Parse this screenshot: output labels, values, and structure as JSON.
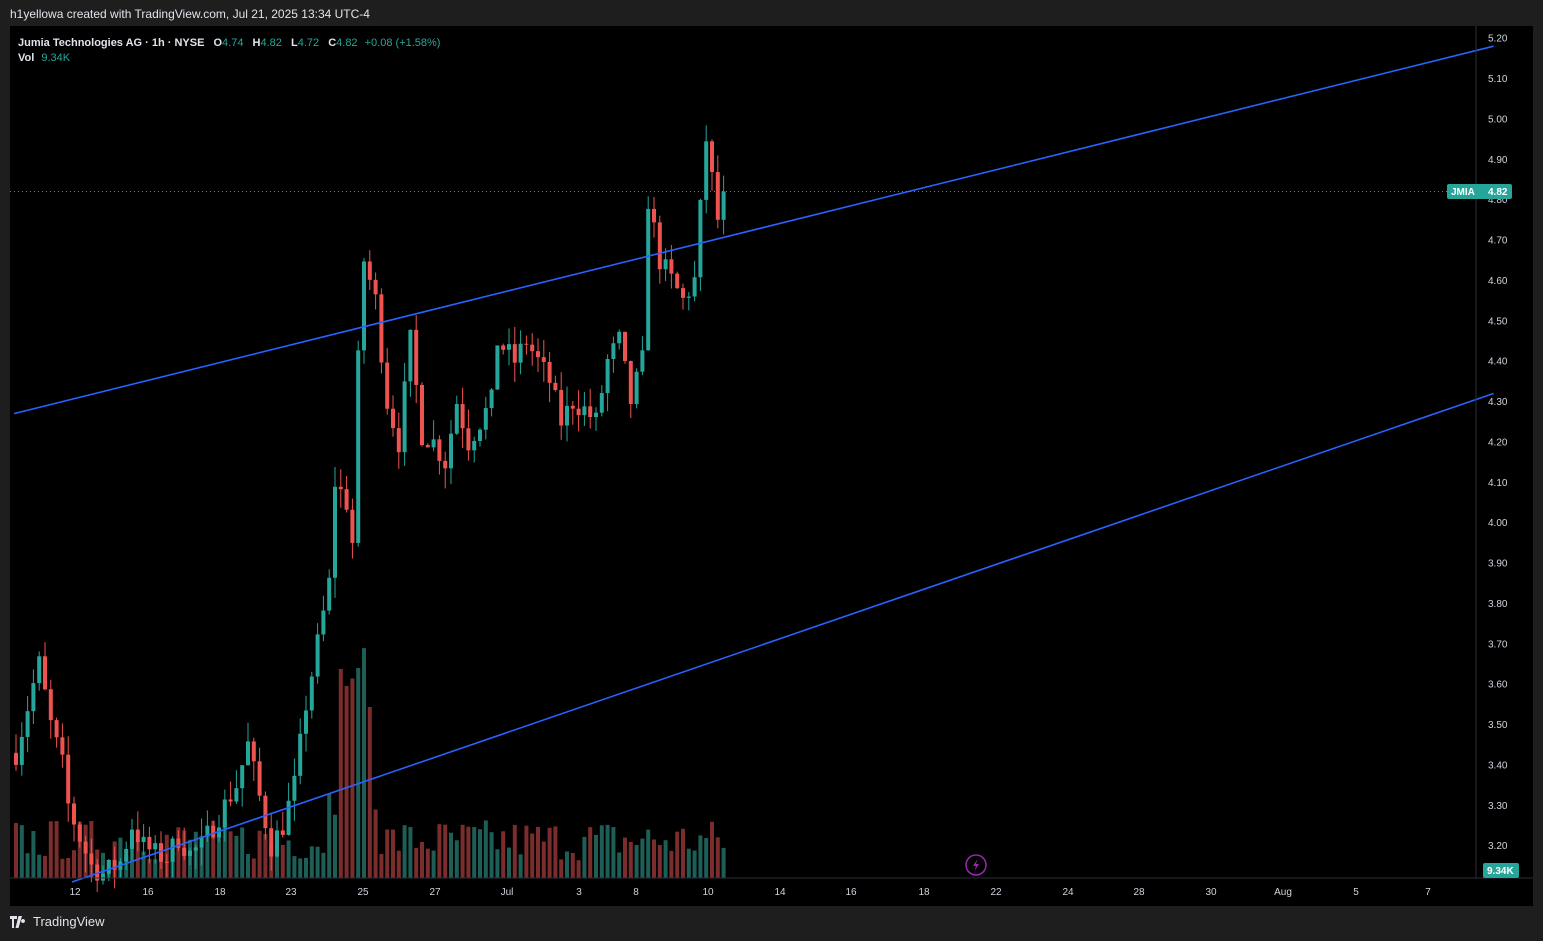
{
  "caption": "h1yellowa created with TradingView.com, Jul 21, 2025 13:34 UTC-4",
  "footer": {
    "brand": "TradingView"
  },
  "legend": {
    "symbol_line": "Jumia Technologies AG · 1h · NYSE",
    "o_label": "O",
    "o_value": "4.74",
    "h_label": "H",
    "h_value": "4.82",
    "l_label": "L",
    "l_value": "4.72",
    "c_label": "C",
    "c_value": "4.82",
    "change": "+0.08 (+1.58%)",
    "vol_label": "Vol",
    "vol_value": "9.34K"
  },
  "colors": {
    "up": "#26a69a",
    "down": "#ef5350",
    "up_vol": "#1d5e57",
    "down_vol": "#7a2d2c",
    "trendline": "#2962ff",
    "badge": "#26a69a",
    "background": "#000000"
  },
  "price_badge": {
    "symbol": "JMIA",
    "value": "4.82"
  },
  "volume_badge": {
    "value": "9.34K"
  },
  "icons": {
    "lightning": "lightning-icon",
    "logo": "tradingview-logo-icon"
  },
  "chart_data": {
    "type": "candlestick",
    "title": "Jumia Technologies AG · 1h · NYSE",
    "ylim": [
      3.12,
      5.23
    ],
    "y_ticks": [
      "5.20",
      "5.10",
      "5.00",
      "4.90",
      "4.80",
      "4.70",
      "4.60",
      "4.50",
      "4.40",
      "4.30",
      "4.20",
      "4.10",
      "4.00",
      "3.90",
      "3.80",
      "3.70",
      "3.60",
      "3.50",
      "3.40",
      "3.30",
      "3.20"
    ],
    "x_ticks": [
      "12",
      "16",
      "18",
      "23",
      "25",
      "27",
      "Jul",
      "3",
      "8",
      "10",
      "14",
      "16",
      "18",
      "22",
      "24",
      "28",
      "30",
      "Aug",
      "5",
      "7"
    ],
    "last_price": 4.82,
    "trendlines": [
      {
        "name": "upper channel",
        "start": [
          0,
          4.27
        ],
        "end": [
          162,
          5.18
        ]
      },
      {
        "name": "lower channel",
        "start": [
          10,
          3.11
        ],
        "end": [
          162,
          4.32
        ]
      }
    ],
    "waypoints": [
      [
        0,
        3.43
      ],
      [
        3,
        3.6
      ],
      [
        4,
        3.65
      ],
      [
        6,
        3.5
      ],
      [
        8,
        3.4
      ],
      [
        9,
        3.3
      ],
      [
        11,
        3.22
      ],
      [
        13,
        3.15
      ],
      [
        15,
        3.13
      ],
      [
        18,
        3.16
      ],
      [
        20,
        3.25
      ],
      [
        22,
        3.2
      ],
      [
        24,
        3.18
      ],
      [
        26,
        3.17
      ],
      [
        28,
        3.22
      ],
      [
        30,
        3.18
      ],
      [
        32,
        3.2
      ],
      [
        34,
        3.25
      ],
      [
        36,
        3.3
      ],
      [
        38,
        3.35
      ],
      [
        40,
        3.45
      ],
      [
        42,
        3.32
      ],
      [
        44,
        3.2
      ],
      [
        46,
        3.25
      ],
      [
        48,
        3.35
      ],
      [
        50,
        3.55
      ],
      [
        52,
        3.7
      ],
      [
        54,
        3.85
      ],
      [
        55,
        4.1
      ],
      [
        57,
        4.05
      ],
      [
        58,
        3.95
      ],
      [
        59,
        4.4
      ],
      [
        60,
        4.65
      ],
      [
        62,
        4.55
      ],
      [
        64,
        4.3
      ],
      [
        66,
        4.2
      ],
      [
        68,
        4.45
      ],
      [
        70,
        4.22
      ],
      [
        72,
        4.2
      ],
      [
        74,
        4.15
      ],
      [
        76,
        4.3
      ],
      [
        78,
        4.2
      ],
      [
        80,
        4.25
      ],
      [
        82,
        4.3
      ],
      [
        83,
        4.45
      ],
      [
        86,
        4.4
      ],
      [
        88,
        4.45
      ],
      [
        90,
        4.4
      ],
      [
        92,
        4.35
      ],
      [
        94,
        4.25
      ],
      [
        96,
        4.3
      ],
      [
        98,
        4.28
      ],
      [
        100,
        4.25
      ],
      [
        102,
        4.4
      ],
      [
        104,
        4.45
      ],
      [
        106,
        4.3
      ],
      [
        108,
        4.4
      ],
      [
        109,
        4.8
      ],
      [
        111,
        4.65
      ],
      [
        113,
        4.6
      ],
      [
        115,
        4.55
      ],
      [
        117,
        4.6
      ],
      [
        119,
        4.95
      ],
      [
        120,
        4.85
      ],
      [
        121,
        4.75
      ],
      [
        122,
        4.82
      ]
    ],
    "volume_scale_max": 100000,
    "series": [
      {
        "name": "JMIA",
        "kind": "ohlc"
      },
      {
        "name": "Vol",
        "kind": "volume"
      }
    ]
  }
}
